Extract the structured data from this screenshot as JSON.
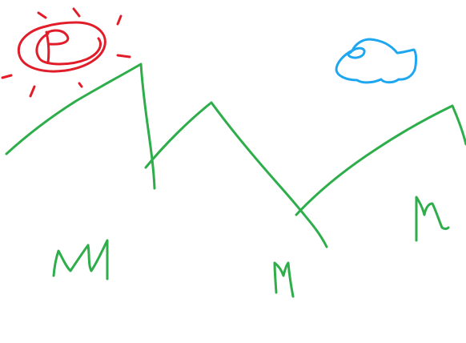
{
  "drawing": {
    "colors": {
      "background": "#ffffff",
      "sun": "#e11d2a",
      "cloud": "#1ea7f0",
      "mountains": "#2ead4b",
      "grass": "#2ead4b"
    },
    "elements": [
      "sun",
      "cloud",
      "mountain-range",
      "grass-tufts"
    ]
  }
}
